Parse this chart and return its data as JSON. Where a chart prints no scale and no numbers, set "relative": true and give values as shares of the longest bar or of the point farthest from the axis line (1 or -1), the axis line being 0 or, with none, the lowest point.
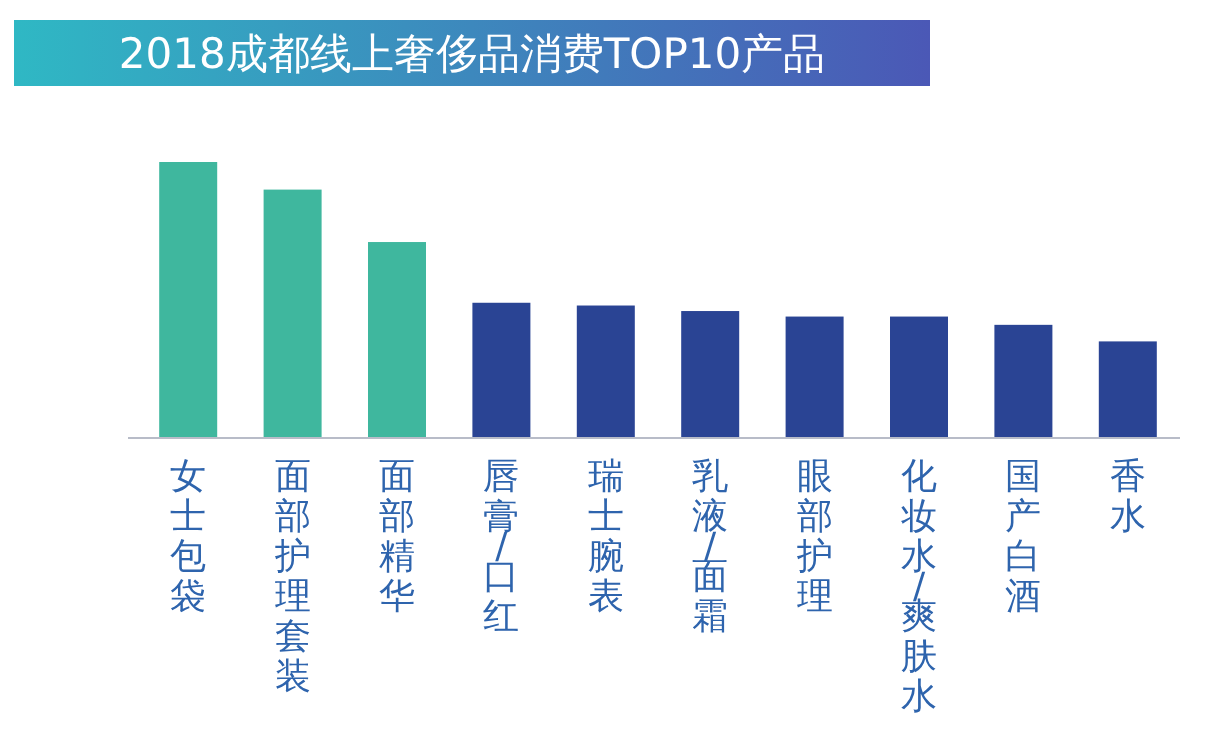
{
  "chart_data": {
    "type": "bar",
    "title": "2018成都线上奢侈品消费TOP10产品",
    "relative": true,
    "categories": [
      "女士包袋",
      "面部护理套装",
      "面部精华",
      "唇膏/口红",
      "瑞士腕表",
      "乳液/面霜",
      "眼部护理",
      "化妆水/爽肤水",
      "国产白酒",
      "香水"
    ],
    "values": [
      1,
      0.9,
      0.71,
      0.49,
      0.48,
      0.46,
      0.44,
      0.44,
      0.41,
      0.35
    ],
    "colors": [
      "#3fb79e",
      "#3fb79e",
      "#3fb79e",
      "#2a4494",
      "#2a4494",
      "#2a4494",
      "#2a4494",
      "#2a4494",
      "#2a4494",
      "#2a4494"
    ]
  }
}
